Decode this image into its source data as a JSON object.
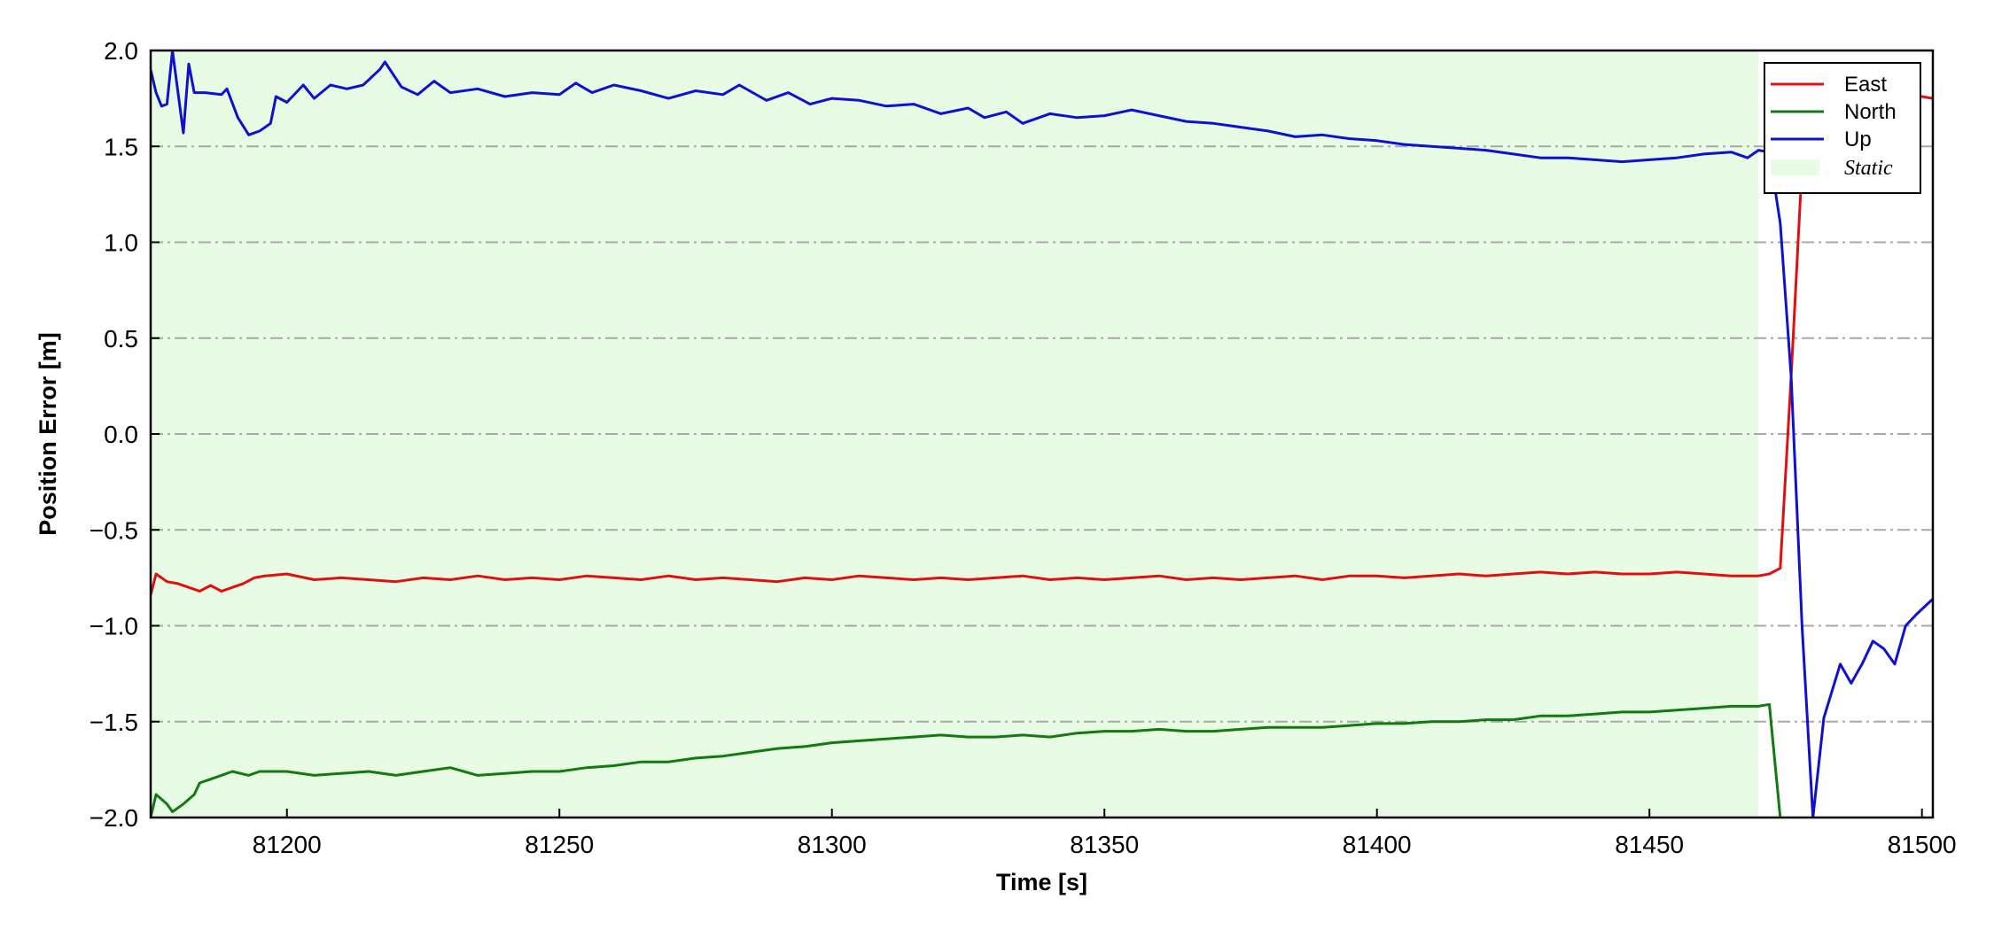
{
  "chart_data": {
    "type": "line",
    "xlabel": "Time [s]",
    "ylabel": "Position Error [m]",
    "xlim": [
      81175,
      81502
    ],
    "ylim": [
      -2.0,
      2.0
    ],
    "xticks": [
      81200,
      81250,
      81300,
      81350,
      81400,
      81450,
      81500
    ],
    "xtick_labels": [
      "81200",
      "81250",
      "81300",
      "81350",
      "81400",
      "81450",
      "81500"
    ],
    "yticks": [
      2.0,
      1.5,
      1.0,
      0.5,
      0.0,
      -0.5,
      -1.0,
      -1.5,
      -2.0
    ],
    "ytick_labels": [
      "2.0",
      "1.5",
      "1.0",
      "0.5",
      "0.0",
      "−0.5",
      "−1.0",
      "−1.5",
      "−2.0"
    ],
    "grid": "horizontal dash-dot",
    "legend_position": "top-right",
    "static_region": {
      "label": "Static",
      "x_start": 81175,
      "x_end": 81470,
      "color": "#e8fbe5"
    },
    "series": [
      {
        "name": "East",
        "color": "#e01010",
        "points": [
          [
            81175,
            -0.84
          ],
          [
            81176,
            -0.73
          ],
          [
            81178,
            -0.77
          ],
          [
            81180,
            -0.78
          ],
          [
            81182,
            -0.8
          ],
          [
            81184,
            -0.82
          ],
          [
            81186,
            -0.79
          ],
          [
            81188,
            -0.82
          ],
          [
            81190,
            -0.8
          ],
          [
            81192,
            -0.78
          ],
          [
            81194,
            -0.75
          ],
          [
            81196,
            -0.74
          ],
          [
            81200,
            -0.73
          ],
          [
            81205,
            -0.76
          ],
          [
            81210,
            -0.75
          ],
          [
            81215,
            -0.76
          ],
          [
            81220,
            -0.77
          ],
          [
            81225,
            -0.75
          ],
          [
            81230,
            -0.76
          ],
          [
            81235,
            -0.74
          ],
          [
            81240,
            -0.76
          ],
          [
            81245,
            -0.75
          ],
          [
            81250,
            -0.76
          ],
          [
            81255,
            -0.74
          ],
          [
            81260,
            -0.75
          ],
          [
            81265,
            -0.76
          ],
          [
            81270,
            -0.74
          ],
          [
            81275,
            -0.76
          ],
          [
            81280,
            -0.75
          ],
          [
            81285,
            -0.76
          ],
          [
            81290,
            -0.77
          ],
          [
            81295,
            -0.75
          ],
          [
            81300,
            -0.76
          ],
          [
            81305,
            -0.74
          ],
          [
            81310,
            -0.75
          ],
          [
            81315,
            -0.76
          ],
          [
            81320,
            -0.75
          ],
          [
            81325,
            -0.76
          ],
          [
            81330,
            -0.75
          ],
          [
            81335,
            -0.74
          ],
          [
            81340,
            -0.76
          ],
          [
            81345,
            -0.75
          ],
          [
            81350,
            -0.76
          ],
          [
            81355,
            -0.75
          ],
          [
            81360,
            -0.74
          ],
          [
            81365,
            -0.76
          ],
          [
            81370,
            -0.75
          ],
          [
            81375,
            -0.76
          ],
          [
            81380,
            -0.75
          ],
          [
            81385,
            -0.74
          ],
          [
            81390,
            -0.76
          ],
          [
            81395,
            -0.74
          ],
          [
            81400,
            -0.74
          ],
          [
            81405,
            -0.75
          ],
          [
            81410,
            -0.74
          ],
          [
            81415,
            -0.73
          ],
          [
            81420,
            -0.74
          ],
          [
            81425,
            -0.73
          ],
          [
            81430,
            -0.72
          ],
          [
            81435,
            -0.73
          ],
          [
            81440,
            -0.72
          ],
          [
            81445,
            -0.73
          ],
          [
            81450,
            -0.73
          ],
          [
            81455,
            -0.72
          ],
          [
            81460,
            -0.73
          ],
          [
            81465,
            -0.74
          ],
          [
            81470,
            -0.74
          ],
          [
            81472,
            -0.73
          ],
          [
            81474,
            -0.7
          ],
          [
            81476,
            0.3
          ],
          [
            81478,
            1.4
          ],
          [
            81479,
            1.65
          ],
          [
            81480,
            1.78
          ],
          [
            81490,
            1.78
          ],
          [
            81500,
            1.76
          ],
          [
            81502,
            1.75
          ]
        ]
      },
      {
        "name": "North",
        "color": "#117a11",
        "points": [
          [
            81175,
            -2.0
          ],
          [
            81176,
            -1.88
          ],
          [
            81178,
            -1.93
          ],
          [
            81179,
            -1.97
          ],
          [
            81181,
            -1.93
          ],
          [
            81183,
            -1.88
          ],
          [
            81184,
            -1.82
          ],
          [
            81186,
            -1.8
          ],
          [
            81188,
            -1.78
          ],
          [
            81190,
            -1.76
          ],
          [
            81193,
            -1.78
          ],
          [
            81195,
            -1.76
          ],
          [
            81200,
            -1.76
          ],
          [
            81205,
            -1.78
          ],
          [
            81210,
            -1.77
          ],
          [
            81215,
            -1.76
          ],
          [
            81220,
            -1.78
          ],
          [
            81225,
            -1.76
          ],
          [
            81230,
            -1.74
          ],
          [
            81235,
            -1.78
          ],
          [
            81240,
            -1.77
          ],
          [
            81245,
            -1.76
          ],
          [
            81250,
            -1.76
          ],
          [
            81255,
            -1.74
          ],
          [
            81260,
            -1.73
          ],
          [
            81265,
            -1.71
          ],
          [
            81270,
            -1.71
          ],
          [
            81275,
            -1.69
          ],
          [
            81280,
            -1.68
          ],
          [
            81285,
            -1.66
          ],
          [
            81290,
            -1.64
          ],
          [
            81295,
            -1.63
          ],
          [
            81300,
            -1.61
          ],
          [
            81305,
            -1.6
          ],
          [
            81310,
            -1.59
          ],
          [
            81315,
            -1.58
          ],
          [
            81320,
            -1.57
          ],
          [
            81325,
            -1.58
          ],
          [
            81330,
            -1.58
          ],
          [
            81335,
            -1.57
          ],
          [
            81340,
            -1.58
          ],
          [
            81345,
            -1.56
          ],
          [
            81350,
            -1.55
          ],
          [
            81355,
            -1.55
          ],
          [
            81360,
            -1.54
          ],
          [
            81365,
            -1.55
          ],
          [
            81370,
            -1.55
          ],
          [
            81375,
            -1.54
          ],
          [
            81380,
            -1.53
          ],
          [
            81385,
            -1.53
          ],
          [
            81390,
            -1.53
          ],
          [
            81395,
            -1.52
          ],
          [
            81400,
            -1.51
          ],
          [
            81405,
            -1.51
          ],
          [
            81410,
            -1.5
          ],
          [
            81415,
            -1.5
          ],
          [
            81420,
            -1.49
          ],
          [
            81425,
            -1.49
          ],
          [
            81430,
            -1.47
          ],
          [
            81435,
            -1.47
          ],
          [
            81440,
            -1.46
          ],
          [
            81445,
            -1.45
          ],
          [
            81450,
            -1.45
          ],
          [
            81455,
            -1.44
          ],
          [
            81460,
            -1.43
          ],
          [
            81465,
            -1.42
          ],
          [
            81470,
            -1.42
          ],
          [
            81472,
            -1.41
          ],
          [
            81474,
            -2.0
          ]
        ]
      },
      {
        "name": "Up",
        "color": "#1010d0",
        "points": [
          [
            81175,
            1.9
          ],
          [
            81176,
            1.78
          ],
          [
            81177,
            1.71
          ],
          [
            81178,
            1.72
          ],
          [
            81179,
            2.0
          ],
          [
            81181,
            1.57
          ],
          [
            81182,
            1.93
          ],
          [
            81183,
            1.78
          ],
          [
            81185,
            1.78
          ],
          [
            81188,
            1.77
          ],
          [
            81189,
            1.8
          ],
          [
            81191,
            1.65
          ],
          [
            81193,
            1.56
          ],
          [
            81195,
            1.58
          ],
          [
            81197,
            1.62
          ],
          [
            81198,
            1.76
          ],
          [
            81200,
            1.73
          ],
          [
            81203,
            1.82
          ],
          [
            81205,
            1.75
          ],
          [
            81208,
            1.82
          ],
          [
            81211,
            1.8
          ],
          [
            81214,
            1.82
          ],
          [
            81217,
            1.9
          ],
          [
            81218,
            1.94
          ],
          [
            81221,
            1.81
          ],
          [
            81224,
            1.77
          ],
          [
            81227,
            1.84
          ],
          [
            81230,
            1.78
          ],
          [
            81235,
            1.8
          ],
          [
            81240,
            1.76
          ],
          [
            81245,
            1.78
          ],
          [
            81250,
            1.77
          ],
          [
            81253,
            1.83
          ],
          [
            81256,
            1.78
          ],
          [
            81260,
            1.82
          ],
          [
            81265,
            1.79
          ],
          [
            81270,
            1.75
          ],
          [
            81275,
            1.79
          ],
          [
            81280,
            1.77
          ],
          [
            81283,
            1.82
          ],
          [
            81288,
            1.74
          ],
          [
            81292,
            1.78
          ],
          [
            81296,
            1.72
          ],
          [
            81300,
            1.75
          ],
          [
            81305,
            1.74
          ],
          [
            81310,
            1.71
          ],
          [
            81315,
            1.72
          ],
          [
            81320,
            1.67
          ],
          [
            81325,
            1.7
          ],
          [
            81328,
            1.65
          ],
          [
            81332,
            1.68
          ],
          [
            81335,
            1.62
          ],
          [
            81340,
            1.67
          ],
          [
            81345,
            1.65
          ],
          [
            81350,
            1.66
          ],
          [
            81355,
            1.69
          ],
          [
            81360,
            1.66
          ],
          [
            81365,
            1.63
          ],
          [
            81370,
            1.62
          ],
          [
            81375,
            1.6
          ],
          [
            81380,
            1.58
          ],
          [
            81385,
            1.55
          ],
          [
            81390,
            1.56
          ],
          [
            81395,
            1.54
          ],
          [
            81400,
            1.53
          ],
          [
            81405,
            1.51
          ],
          [
            81410,
            1.5
          ],
          [
            81415,
            1.49
          ],
          [
            81420,
            1.48
          ],
          [
            81425,
            1.46
          ],
          [
            81430,
            1.44
          ],
          [
            81435,
            1.44
          ],
          [
            81440,
            1.43
          ],
          [
            81445,
            1.42
          ],
          [
            81450,
            1.43
          ],
          [
            81455,
            1.44
          ],
          [
            81460,
            1.46
          ],
          [
            81465,
            1.47
          ],
          [
            81468,
            1.44
          ],
          [
            81470,
            1.48
          ],
          [
            81472,
            1.47
          ],
          [
            81474,
            1.1
          ],
          [
            81476,
            0.3
          ],
          [
            81478,
            -1.0
          ],
          [
            81480,
            -2.0
          ],
          [
            81482,
            -1.48
          ],
          [
            81485,
            -1.2
          ],
          [
            81487,
            -1.3
          ],
          [
            81489,
            -1.2
          ],
          [
            81491,
            -1.08
          ],
          [
            81493,
            -1.12
          ],
          [
            81495,
            -1.2
          ],
          [
            81497,
            -1.0
          ],
          [
            81499,
            -0.94
          ],
          [
            81502,
            -0.86
          ]
        ]
      }
    ]
  }
}
